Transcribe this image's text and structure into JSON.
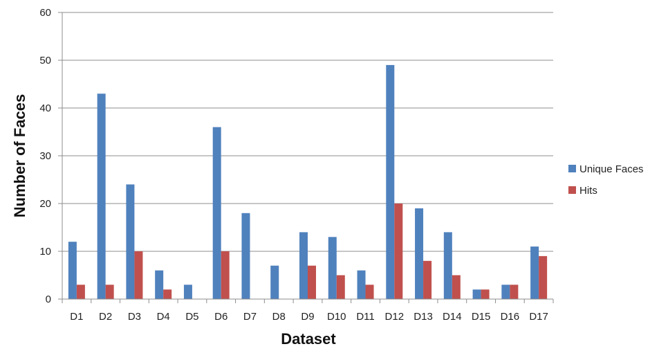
{
  "chart_data": {
    "type": "bar",
    "xlabel": "Dataset",
    "ylabel": "Number of Faces",
    "ylim": [
      0,
      60
    ],
    "yticks": [
      0,
      10,
      20,
      30,
      40,
      50,
      60
    ],
    "grid": true,
    "legend_position": "right",
    "categories": [
      "D1",
      "D2",
      "D3",
      "D4",
      "D5",
      "D6",
      "D7",
      "D8",
      "D9",
      "D10",
      "D11",
      "D12",
      "D13",
      "D14",
      "D15",
      "D16",
      "D17"
    ],
    "series": [
      {
        "name": "Unique Faces",
        "color": "#4f81bd",
        "values": [
          12,
          43,
          24,
          6,
          3,
          36,
          18,
          7,
          14,
          13,
          6,
          49,
          19,
          14,
          2,
          3,
          11
        ]
      },
      {
        "name": "Hits",
        "color": "#c0504d",
        "values": [
          3,
          3,
          10,
          2,
          0,
          10,
          0,
          0,
          7,
          5,
          3,
          20,
          8,
          5,
          2,
          3,
          9
        ]
      }
    ]
  }
}
